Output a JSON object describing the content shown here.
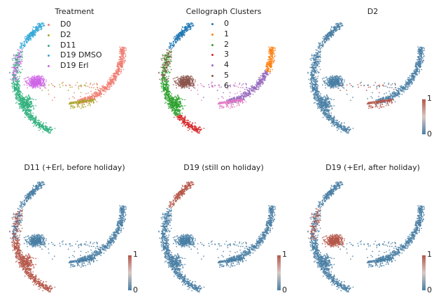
{
  "chart_data": [
    {
      "type": "scatter",
      "title": "Treatment",
      "color_by": "category",
      "legend": [
        {
          "label": "D0",
          "color": "#f07a6e"
        },
        {
          "label": "D2",
          "color": "#aaa62c"
        },
        {
          "label": "D11",
          "color": "#2fb07c"
        },
        {
          "label": "D19 DMSO",
          "color": "#35a8d8"
        },
        {
          "label": "D19 Erl",
          "color": "#cf66e6"
        }
      ]
    },
    {
      "type": "scatter",
      "title": "Cellograph Clusters",
      "color_by": "category",
      "legend": [
        {
          "label": "0",
          "color": "#1f77b4"
        },
        {
          "label": "1",
          "color": "#ff7f0e"
        },
        {
          "label": "2",
          "color": "#2ca02c"
        },
        {
          "label": "3",
          "color": "#d62728"
        },
        {
          "label": "4",
          "color": "#9467bd"
        },
        {
          "label": "5",
          "color": "#8c564b"
        },
        {
          "label": "6",
          "color": "#e377c2"
        }
      ]
    },
    {
      "type": "scatter",
      "title": "D2",
      "color_by": "value",
      "colorbar": {
        "min": "0",
        "max": "1",
        "low_color": "#4a7fa5",
        "high_color": "#b5574a"
      },
      "high_region": "D2"
    },
    {
      "type": "scatter",
      "title": "D11 (+Erl, before holiday)",
      "color_by": "value",
      "colorbar": {
        "min": "0",
        "max": "1",
        "low_color": "#4a7fa5",
        "high_color": "#b5574a"
      },
      "high_region": "D11"
    },
    {
      "type": "scatter",
      "title": "D19 (still on holiday)",
      "color_by": "value",
      "colorbar": {
        "min": "0",
        "max": "1",
        "low_color": "#4a7fa5",
        "high_color": "#b5574a"
      },
      "high_region": "D19 DMSO"
    },
    {
      "type": "scatter",
      "title": "D19 (+Erl, after holiday)",
      "color_by": "value",
      "colorbar": {
        "min": "0",
        "max": "1",
        "low_color": "#4a7fa5",
        "high_color": "#b5574a"
      },
      "high_region": "D19 Erl"
    }
  ]
}
